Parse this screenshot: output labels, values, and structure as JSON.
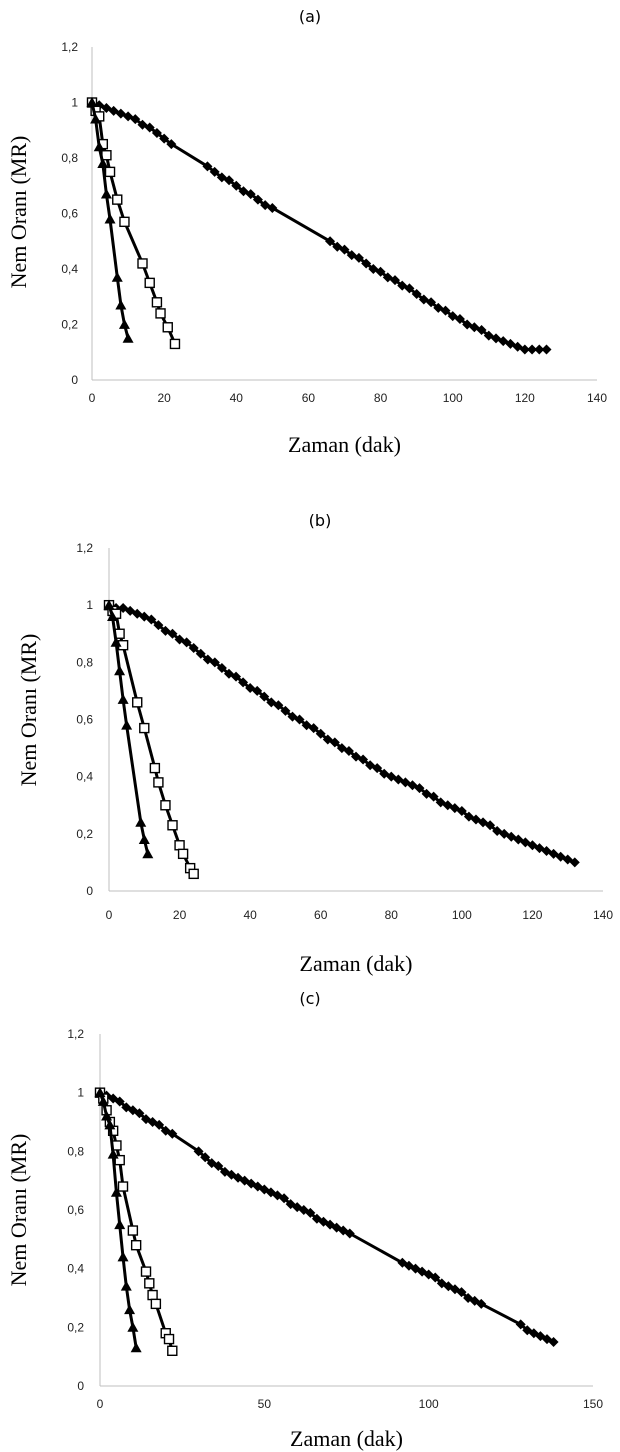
{
  "chart_data": [
    {
      "type": "line",
      "title": "(a)",
      "xlabel": "Zaman (dak)",
      "ylabel": "Nem Oranı (MR)",
      "xlim": [
        0,
        140
      ],
      "ylim": [
        0,
        1.2
      ],
      "xticks": [
        "0",
        "20",
        "40",
        "60",
        "80",
        "100",
        "120",
        "140"
      ],
      "yticks": [
        "0",
        "0,2",
        "0,4",
        "0,6",
        "0,8",
        "1",
        "1,2"
      ],
      "grid": false,
      "legend": "none",
      "series": [
        {
          "marker": "diamond",
          "x": [
            0,
            2,
            4,
            6,
            8,
            10,
            12,
            14,
            16,
            18,
            20,
            22,
            32,
            34,
            36,
            38,
            40,
            42,
            44,
            46,
            48,
            50,
            66,
            68,
            70,
            72,
            74,
            76,
            78,
            80,
            82,
            84,
            86,
            88,
            90,
            92,
            94,
            96,
            98,
            100,
            102,
            104,
            106,
            108,
            110,
            112,
            114,
            116,
            118,
            120,
            122,
            124,
            126
          ],
          "y": [
            1.0,
            0.99,
            0.98,
            0.97,
            0.96,
            0.95,
            0.94,
            0.92,
            0.91,
            0.89,
            0.87,
            0.85,
            0.77,
            0.75,
            0.73,
            0.72,
            0.7,
            0.68,
            0.67,
            0.65,
            0.63,
            0.62,
            0.5,
            0.48,
            0.47,
            0.45,
            0.44,
            0.42,
            0.4,
            0.39,
            0.37,
            0.36,
            0.34,
            0.33,
            0.31,
            0.29,
            0.28,
            0.26,
            0.25,
            0.23,
            0.22,
            0.2,
            0.19,
            0.18,
            0.16,
            0.15,
            0.14,
            0.13,
            0.12,
            0.11,
            0.11,
            0.11,
            0.11
          ]
        },
        {
          "marker": "square-open",
          "x": [
            0,
            1,
            2,
            3,
            4,
            5,
            7,
            9,
            14,
            16,
            18,
            19,
            21,
            23
          ],
          "y": [
            1.0,
            0.97,
            0.95,
            0.85,
            0.81,
            0.75,
            0.65,
            0.57,
            0.42,
            0.35,
            0.28,
            0.24,
            0.19,
            0.13
          ]
        },
        {
          "marker": "triangle",
          "x": [
            0,
            1,
            2,
            3,
            4,
            5,
            7,
            8,
            9,
            10
          ],
          "y": [
            1.0,
            0.94,
            0.84,
            0.78,
            0.67,
            0.58,
            0.37,
            0.27,
            0.2,
            0.15
          ]
        }
      ]
    },
    {
      "type": "line",
      "title": "(b)",
      "xlabel": "Zaman (dak)",
      "ylabel": "Nem Oranı (MR)",
      "xlim": [
        0,
        140
      ],
      "ylim": [
        0,
        1.2
      ],
      "xticks": [
        "0",
        "20",
        "40",
        "60",
        "80",
        "100",
        "120",
        "140"
      ],
      "yticks": [
        "0",
        "0,2",
        "0,4",
        "0,6",
        "0,8",
        "1",
        "1,2"
      ],
      "grid": false,
      "legend": "none",
      "series": [
        {
          "marker": "diamond",
          "x": [
            0,
            2,
            4,
            6,
            8,
            10,
            12,
            14,
            16,
            18,
            20,
            22,
            24,
            26,
            28,
            30,
            32,
            34,
            36,
            38,
            40,
            42,
            44,
            46,
            48,
            50,
            52,
            54,
            56,
            58,
            60,
            62,
            64,
            66,
            68,
            70,
            72,
            74,
            76,
            78,
            80,
            82,
            84,
            86,
            88,
            90,
            92,
            94,
            96,
            98,
            100,
            102,
            104,
            106,
            108,
            110,
            112,
            114,
            116,
            118,
            120,
            122,
            124,
            126,
            128,
            130,
            132
          ],
          "y": [
            1.0,
            0.99,
            0.99,
            0.98,
            0.97,
            0.96,
            0.95,
            0.93,
            0.91,
            0.9,
            0.88,
            0.87,
            0.85,
            0.83,
            0.81,
            0.8,
            0.78,
            0.76,
            0.75,
            0.73,
            0.71,
            0.7,
            0.68,
            0.66,
            0.65,
            0.63,
            0.61,
            0.6,
            0.58,
            0.57,
            0.55,
            0.53,
            0.52,
            0.5,
            0.49,
            0.47,
            0.46,
            0.44,
            0.43,
            0.41,
            0.4,
            0.39,
            0.38,
            0.37,
            0.36,
            0.34,
            0.33,
            0.31,
            0.3,
            0.29,
            0.28,
            0.26,
            0.25,
            0.24,
            0.23,
            0.21,
            0.2,
            0.19,
            0.18,
            0.17,
            0.16,
            0.15,
            0.14,
            0.13,
            0.12,
            0.11,
            0.1
          ]
        },
        {
          "marker": "square-open",
          "x": [
            0,
            1,
            2,
            3,
            4,
            8,
            10,
            13,
            14,
            16,
            18,
            20,
            21,
            23,
            24
          ],
          "y": [
            1.0,
            0.98,
            0.97,
            0.9,
            0.86,
            0.66,
            0.57,
            0.43,
            0.38,
            0.3,
            0.23,
            0.16,
            0.13,
            0.08,
            0.06
          ]
        },
        {
          "marker": "triangle",
          "x": [
            0,
            1,
            2,
            3,
            4,
            5,
            9,
            10,
            11
          ],
          "y": [
            1.0,
            0.96,
            0.87,
            0.77,
            0.67,
            0.58,
            0.24,
            0.18,
            0.13
          ]
        }
      ]
    },
    {
      "type": "line",
      "title": "(c)",
      "xlabel": "Zaman (dak)",
      "ylabel": "Nem Oranı (MR)",
      "xlim": [
        0,
        150
      ],
      "ylim": [
        0,
        1.2
      ],
      "xticks": [
        "0",
        "50",
        "100",
        "150"
      ],
      "yticks": [
        "0",
        "0,2",
        "0,4",
        "0,6",
        "0,8",
        "1",
        "1,2"
      ],
      "grid": false,
      "legend": "none",
      "series": [
        {
          "marker": "diamond",
          "x": [
            0,
            2,
            4,
            6,
            8,
            10,
            12,
            14,
            16,
            18,
            20,
            22,
            30,
            32,
            34,
            36,
            38,
            40,
            42,
            44,
            46,
            48,
            50,
            52,
            54,
            56,
            58,
            60,
            62,
            64,
            66,
            68,
            70,
            72,
            74,
            76,
            92,
            94,
            96,
            98,
            100,
            102,
            104,
            106,
            108,
            110,
            112,
            114,
            116,
            128,
            130,
            132,
            134,
            136,
            138
          ],
          "y": [
            1.0,
            0.99,
            0.98,
            0.97,
            0.95,
            0.94,
            0.93,
            0.91,
            0.9,
            0.89,
            0.87,
            0.86,
            0.8,
            0.78,
            0.76,
            0.75,
            0.73,
            0.72,
            0.71,
            0.7,
            0.69,
            0.68,
            0.67,
            0.66,
            0.65,
            0.64,
            0.62,
            0.61,
            0.6,
            0.59,
            0.57,
            0.56,
            0.55,
            0.54,
            0.53,
            0.52,
            0.42,
            0.41,
            0.4,
            0.39,
            0.38,
            0.37,
            0.35,
            0.34,
            0.33,
            0.32,
            0.3,
            0.29,
            0.28,
            0.21,
            0.19,
            0.18,
            0.17,
            0.16,
            0.15
          ]
        },
        {
          "marker": "square-open",
          "x": [
            0,
            1,
            2,
            3,
            4,
            5,
            6,
            7,
            10,
            11,
            14,
            15,
            16,
            17,
            20,
            21,
            22
          ],
          "y": [
            1.0,
            0.98,
            0.94,
            0.9,
            0.87,
            0.82,
            0.77,
            0.68,
            0.53,
            0.48,
            0.39,
            0.35,
            0.31,
            0.28,
            0.18,
            0.16,
            0.12
          ]
        },
        {
          "marker": "triangle",
          "x": [
            0,
            1,
            2,
            3,
            4,
            5,
            6,
            7,
            8,
            9,
            10,
            11
          ],
          "y": [
            1.0,
            0.97,
            0.92,
            0.89,
            0.79,
            0.66,
            0.55,
            0.44,
            0.34,
            0.26,
            0.2,
            0.13
          ]
        }
      ]
    }
  ]
}
